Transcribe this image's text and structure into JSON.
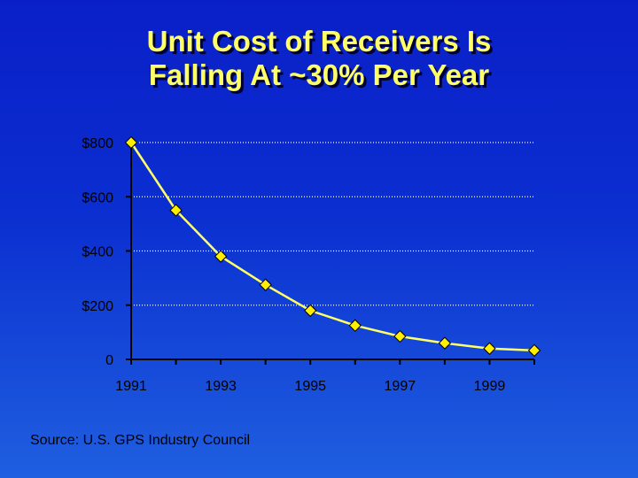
{
  "slide": {
    "title_line1": "Unit Cost of Receivers Is",
    "title_line2": "Falling At ~30% Per Year",
    "source": "Source: U.S. GPS Industry Council"
  },
  "colors": {
    "title": "#ffff66",
    "line": "#ffff66",
    "marker": "#ffee00",
    "grid": "#ffffff",
    "axis": "#000000"
  },
  "chart_data": {
    "type": "line",
    "x": [
      1991,
      1992,
      1993,
      1994,
      1995,
      1996,
      1997,
      1998,
      1999,
      2000
    ],
    "values": [
      800,
      550,
      380,
      275,
      180,
      125,
      85,
      60,
      40,
      33
    ],
    "xticklabels": [
      "1991",
      "",
      "1993",
      "",
      "1995",
      "",
      "1997",
      "",
      "1999",
      ""
    ],
    "yticks": [
      0,
      200,
      400,
      600,
      800
    ],
    "yticklabels": [
      "0",
      "$200",
      "$400",
      "$600",
      "$800"
    ],
    "ylim": [
      0,
      800
    ],
    "grid": "horizontal dotted",
    "legend": "none"
  }
}
